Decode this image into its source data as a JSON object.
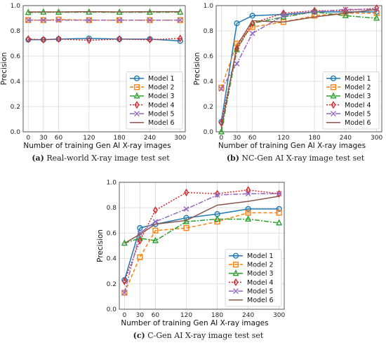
{
  "chart_data": [
    {
      "type": "line",
      "caption_letter": "(a)",
      "caption_text": "Real-world X-ray image test set",
      "xlabel": "Number of training Gen AI X-ray images",
      "ylabel": "Precision",
      "x": [
        0,
        30,
        60,
        120,
        180,
        240,
        300
      ],
      "ylim": [
        0.0,
        1.0
      ],
      "yticks": [
        "0.0",
        "0.2",
        "0.4",
        "0.6",
        "0.8",
        "1.0"
      ],
      "xticks": [
        "0",
        "30",
        "60",
        "120",
        "180",
        "240",
        "300"
      ],
      "grid": true,
      "legend_position": "lower-right",
      "series": [
        {
          "name": "Model 1",
          "values": [
            0.73,
            0.73,
            0.735,
            0.74,
            0.735,
            0.735,
            0.72
          ]
        },
        {
          "name": "Model 2",
          "values": [
            0.885,
            0.885,
            0.89,
            0.885,
            0.885,
            0.885,
            0.885
          ]
        },
        {
          "name": "Model 3",
          "values": [
            0.945,
            0.948,
            0.947,
            0.948,
            0.947,
            0.947,
            0.948
          ]
        },
        {
          "name": "Model 4",
          "values": [
            0.735,
            0.73,
            0.735,
            0.725,
            0.735,
            0.73,
            0.74
          ]
        },
        {
          "name": "Model 5",
          "values": [
            0.885,
            0.885,
            0.885,
            0.885,
            0.885,
            0.885,
            0.885
          ]
        },
        {
          "name": "Model 6",
          "values": [
            0.95,
            0.95,
            0.95,
            0.952,
            0.95,
            0.952,
            0.952
          ]
        }
      ]
    },
    {
      "type": "line",
      "caption_letter": "(b)",
      "caption_text": "NC-Gen AI X-ray image test set",
      "xlabel": "Number of training Gen AI X-ray images",
      "ylabel": "Precision",
      "x": [
        0,
        30,
        60,
        120,
        180,
        240,
        300
      ],
      "ylim": [
        0.0,
        1.0
      ],
      "yticks": [
        "0.0",
        "0.2",
        "0.4",
        "0.6",
        "0.8",
        "1.0"
      ],
      "xticks": [
        "0",
        "30",
        "60",
        "120",
        "180",
        "240",
        "300"
      ],
      "grid": true,
      "legend_position": "lower-right",
      "series": [
        {
          "name": "Model 1",
          "values": [
            0.08,
            0.86,
            0.92,
            0.93,
            0.95,
            0.95,
            0.95
          ]
        },
        {
          "name": "Model 2",
          "values": [
            0.35,
            0.7,
            0.83,
            0.87,
            0.92,
            0.94,
            0.94
          ]
        },
        {
          "name": "Model 3",
          "values": [
            0.0,
            0.65,
            0.86,
            0.91,
            0.95,
            0.92,
            0.9
          ]
        },
        {
          "name": "Model 4",
          "values": [
            0.07,
            0.66,
            0.86,
            0.94,
            0.96,
            0.96,
            0.98
          ]
        },
        {
          "name": "Model 5",
          "values": [
            0.34,
            0.54,
            0.78,
            0.92,
            0.95,
            0.97,
            0.97
          ]
        },
        {
          "name": "Model 6",
          "values": [
            0.03,
            0.68,
            0.88,
            0.87,
            0.91,
            0.94,
            0.97
          ]
        }
      ]
    },
    {
      "type": "line",
      "caption_letter": "(c)",
      "caption_text": "C-Gen AI X-ray image test set",
      "xlabel": "Number of training Gen AI X-ray images",
      "ylabel": "Precision",
      "x": [
        0,
        30,
        60,
        120,
        180,
        240,
        300
      ],
      "ylim": [
        0.0,
        1.0
      ],
      "yticks": [
        "0.0",
        "0.2",
        "0.4",
        "0.6",
        "0.8",
        "1.0"
      ],
      "xticks": [
        "0",
        "30",
        "60",
        "120",
        "180",
        "240",
        "300"
      ],
      "grid": true,
      "legend_position": "lower-right",
      "series": [
        {
          "name": "Model 1",
          "values": [
            0.23,
            0.64,
            0.67,
            0.72,
            0.75,
            0.79,
            0.79
          ]
        },
        {
          "name": "Model 2",
          "values": [
            0.13,
            0.41,
            0.62,
            0.64,
            0.69,
            0.76,
            0.76
          ]
        },
        {
          "name": "Model 3",
          "values": [
            0.52,
            0.56,
            0.54,
            0.69,
            0.71,
            0.71,
            0.68
          ]
        },
        {
          "name": "Model 4",
          "values": [
            0.22,
            0.54,
            0.78,
            0.92,
            0.91,
            0.94,
            0.91
          ]
        },
        {
          "name": "Model 5",
          "values": [
            0.13,
            0.6,
            0.69,
            0.79,
            0.9,
            0.91,
            0.91
          ]
        },
        {
          "name": "Model 6",
          "values": [
            0.52,
            0.59,
            0.67,
            0.7,
            0.82,
            0.85,
            0.89
          ]
        }
      ]
    }
  ],
  "series_styles": [
    {
      "color": "#1f77b4",
      "dash": "",
      "marker": "circle"
    },
    {
      "color": "#ff7f0e",
      "dash": "5,3",
      "marker": "square"
    },
    {
      "color": "#2ca02c",
      "dash": "7,2,2,2",
      "marker": "triangle"
    },
    {
      "color": "#d62728",
      "dash": "2,2",
      "marker": "diamond"
    },
    {
      "color": "#9467bd",
      "dash": "7,2,2,2",
      "marker": "x"
    },
    {
      "color": "#8c564b",
      "dash": "",
      "marker": "none"
    }
  ]
}
